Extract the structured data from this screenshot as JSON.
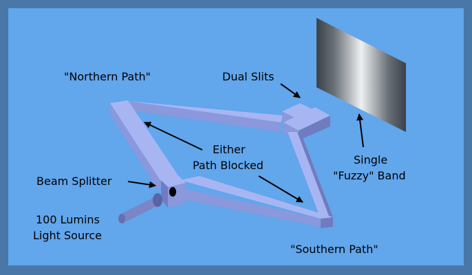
{
  "labels": {
    "northern_path": "\"Northern Path\"",
    "dual_slits": "Dual Slits",
    "either": "Either",
    "path_blocked": "Path Blocked",
    "beam_splitter": "Beam Splitter",
    "light_source_1": "100 Lumins",
    "light_source_2": "Light Source",
    "single": "Single",
    "fuzzy_band": "\"Fuzzy\" Band",
    "southern_path": "\"Southern Path\""
  },
  "colors": {
    "outer_frame": "#4977a8",
    "background": "#62a6ec",
    "beam_top": "#a7b6f2",
    "beam_front": "#8a98dc",
    "beam_side": "#6f7cc0",
    "screen_dark": "#3b4148",
    "screen_light": "#eef0f1"
  }
}
